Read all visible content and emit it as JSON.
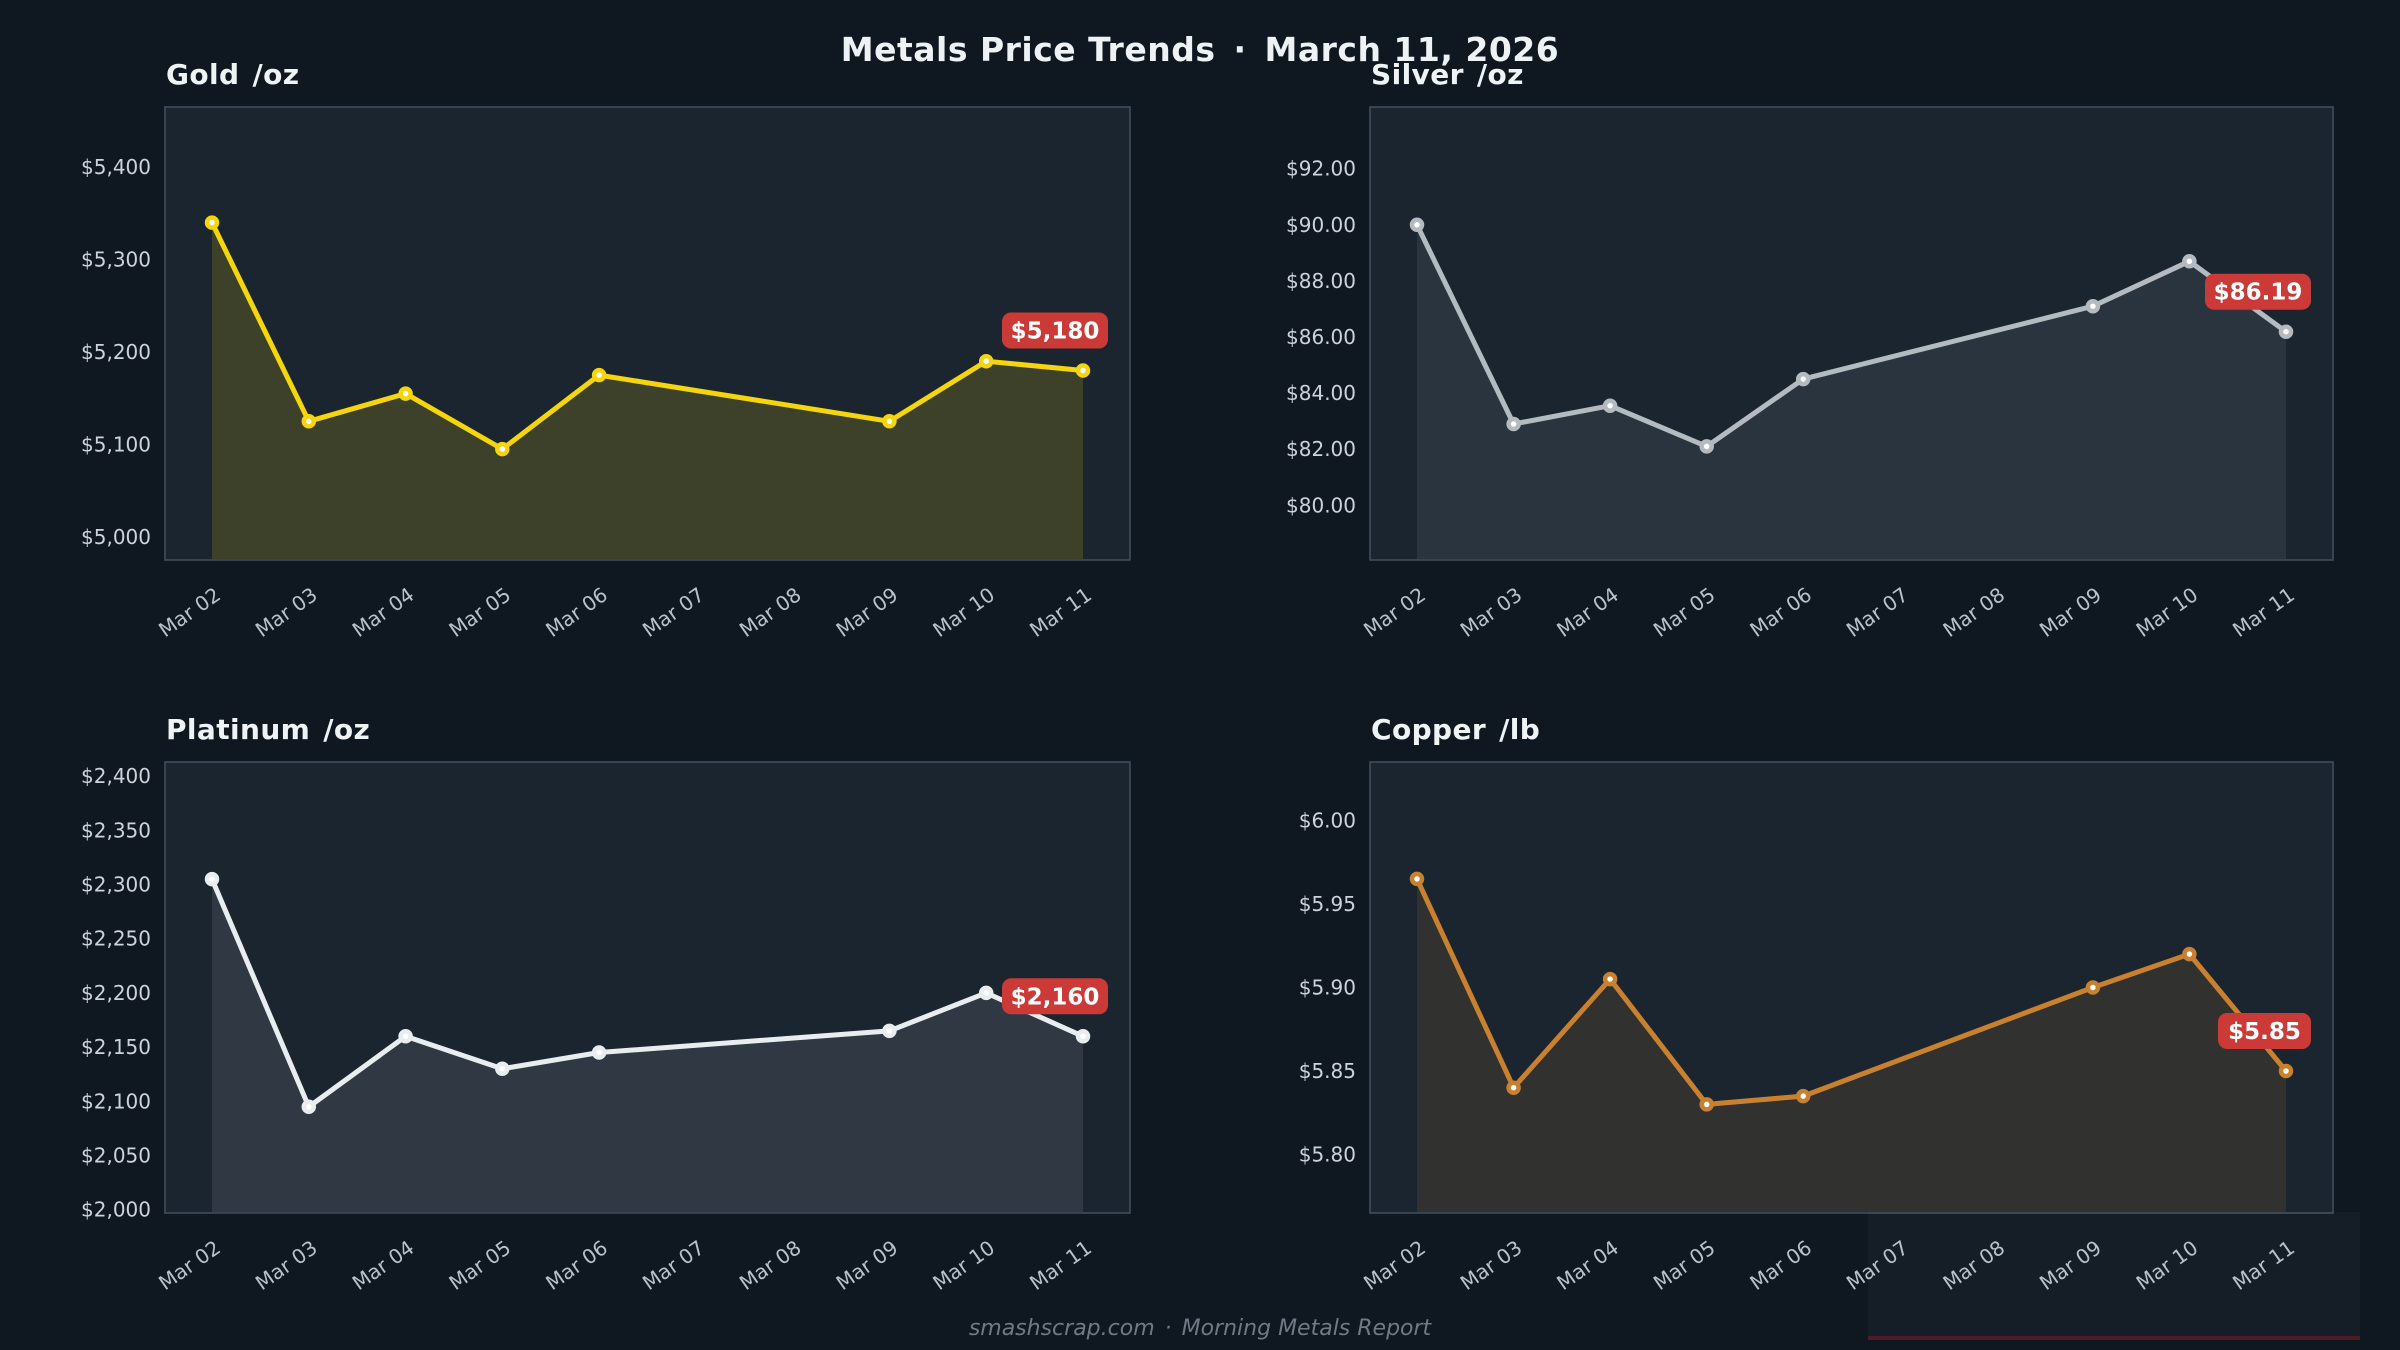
{
  "header": {
    "title": "Metals Price Trends",
    "separator": "·",
    "date": "March 11, 2026"
  },
  "footer": {
    "site": "smashscrap.com",
    "separator": "·",
    "report": "Morning Metals Report"
  },
  "colors": {
    "page_bg": "#0f1721",
    "plot_bg": "#1b2530",
    "plot_border": "#414e5a",
    "y_tick_label": "#ccd3da",
    "x_tick_label": "#b9c2cb",
    "panel_title": "#f0f3f6",
    "header_text": "#eef2f5",
    "footer_text": "#6f7a84",
    "badge_bg": "#cb3a37",
    "badge_text": "#ffffff",
    "gold_line": "#f5d50b",
    "silver_line": "#b4babf",
    "platinum_line": "#e9edef",
    "copper_line": "#c9812f"
  },
  "chart_data": [
    {
      "type": "line",
      "title": "Gold",
      "unit": "/oz",
      "x_tick_labels": [
        "Mar 02",
        "Mar 03",
        "Mar 04",
        "Mar 05",
        "Mar 06",
        "Mar 07",
        "Mar 08",
        "Mar 09",
        "Mar 10",
        "Mar 11"
      ],
      "x_indices": [
        0,
        1,
        2,
        3,
        4,
        7,
        8,
        9
      ],
      "values": [
        5340,
        5125,
        5155,
        5095,
        5175,
        5125,
        5190,
        5180
      ],
      "y_ticks": [
        {
          "value": 5000,
          "label": "$5,000"
        },
        {
          "value": 5100,
          "label": "$5,100"
        },
        {
          "value": 5200,
          "label": "$5,200"
        },
        {
          "value": 5300,
          "label": "$5,300"
        },
        {
          "value": 5400,
          "label": "$5,400"
        }
      ],
      "ylim": [
        4975,
        5465
      ],
      "grid": false,
      "line_color": "#f5d50b",
      "fill_opacity": 0.16,
      "last_label": "$5,180"
    },
    {
      "type": "line",
      "title": "Silver",
      "unit": "/oz",
      "x_tick_labels": [
        "Mar 02",
        "Mar 03",
        "Mar 04",
        "Mar 05",
        "Mar 06",
        "Mar 07",
        "Mar 08",
        "Mar 09",
        "Mar 10",
        "Mar 11"
      ],
      "x_indices": [
        0,
        1,
        2,
        3,
        4,
        7,
        8,
        9
      ],
      "values": [
        90.0,
        82.9,
        83.55,
        82.1,
        84.5,
        87.1,
        88.7,
        86.19
      ],
      "y_ticks": [
        {
          "value": 80,
          "label": "$80.00"
        },
        {
          "value": 82,
          "label": "$82.00"
        },
        {
          "value": 84,
          "label": "$84.00"
        },
        {
          "value": 86,
          "label": "$86.00"
        },
        {
          "value": 88,
          "label": "$88.00"
        },
        {
          "value": 90,
          "label": "$90.00"
        },
        {
          "value": 92,
          "label": "$92.00"
        }
      ],
      "ylim": [
        78.05,
        94.2
      ],
      "grid": false,
      "line_color": "#b4babf",
      "fill_opacity": 0.1,
      "last_label": "$86.19"
    },
    {
      "type": "line",
      "title": "Platinum",
      "unit": "/oz",
      "x_tick_labels": [
        "Mar 02",
        "Mar 03",
        "Mar 04",
        "Mar 05",
        "Mar 06",
        "Mar 07",
        "Mar 08",
        "Mar 09",
        "Mar 10",
        "Mar 11"
      ],
      "x_indices": [
        0,
        1,
        2,
        3,
        4,
        7,
        8,
        9
      ],
      "values": [
        2305,
        2095,
        2160,
        2130,
        2145,
        2165,
        2200,
        2160
      ],
      "y_ticks": [
        {
          "value": 2000,
          "label": "$2,000"
        },
        {
          "value": 2050,
          "label": "$2,050"
        },
        {
          "value": 2100,
          "label": "$2,100"
        },
        {
          "value": 2150,
          "label": "$2,150"
        },
        {
          "value": 2200,
          "label": "$2,200"
        },
        {
          "value": 2250,
          "label": "$2,250"
        },
        {
          "value": 2300,
          "label": "$2,300"
        },
        {
          "value": 2350,
          "label": "$2,350"
        },
        {
          "value": 2400,
          "label": "$2,400"
        }
      ],
      "ylim": [
        1997,
        2413
      ],
      "grid": false,
      "line_color": "#e9edef",
      "fill_opacity": 0.1,
      "last_label": "$2,160"
    },
    {
      "type": "line",
      "title": "Copper",
      "unit": "/lb",
      "x_tick_labels": [
        "Mar 02",
        "Mar 03",
        "Mar 04",
        "Mar 05",
        "Mar 06",
        "Mar 07",
        "Mar 08",
        "Mar 09",
        "Mar 10",
        "Mar 11"
      ],
      "x_indices": [
        0,
        1,
        2,
        3,
        4,
        7,
        8,
        9
      ],
      "values": [
        5.965,
        5.84,
        5.905,
        5.83,
        5.835,
        5.9,
        5.92,
        5.85
      ],
      "y_ticks": [
        {
          "value": 5.8,
          "label": "$5.80"
        },
        {
          "value": 5.85,
          "label": "$5.85"
        },
        {
          "value": 5.9,
          "label": "$5.90"
        },
        {
          "value": 5.95,
          "label": "$5.95"
        },
        {
          "value": 6.0,
          "label": "$6.00"
        }
      ],
      "ylim": [
        5.765,
        6.035
      ],
      "grid": false,
      "line_color": "#c9812f",
      "fill_opacity": 0.13,
      "last_label": "$5.85"
    }
  ]
}
